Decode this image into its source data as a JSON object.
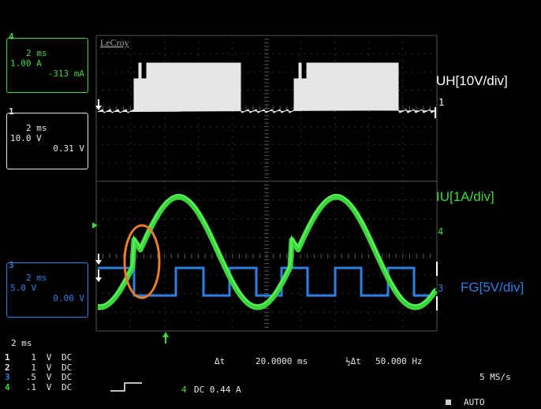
{
  "brand": "LeCroy",
  "channels": [
    {
      "num": "4",
      "timebase": "2 ms",
      "scale": "1.00 A",
      "value": "-313 mA",
      "color": "#3cd63c"
    },
    {
      "num": "1",
      "timebase": "2 ms",
      "scale": "10.0 V",
      "value": "0.31 V",
      "color": "#e6e6e6"
    },
    {
      "num": "3",
      "timebase": "2 ms",
      "scale": "5.0 V",
      "value": "0.00 V",
      "color": "#2f7fe0"
    }
  ],
  "labels": {
    "uh": "UH[10V/div]",
    "iu": "IU[1A/div]",
    "fg": "FG[5V/div]"
  },
  "bottom": {
    "timebase": "2 ms",
    "delta_t_label": "Δt",
    "delta_t": "20.0000 ms",
    "inv_delta_t_label": "½Δt",
    "freq": "50.000 Hz",
    "sample_rate": "5 MS/s",
    "trigger": "DC 0.44 A",
    "mode": "AUTO"
  },
  "channel_list": [
    {
      "num": "1",
      "value": "1",
      "unit": "V",
      "coupling": "DC"
    },
    {
      "num": "2",
      "value": "1",
      "unit": "V",
      "coupling": "DC"
    },
    {
      "num": "3",
      "value": ".5",
      "unit": "V",
      "coupling": "DC"
    },
    {
      "num": "4",
      "value": ".1",
      "unit": "V",
      "coupling": "DC"
    }
  ],
  "colors": {
    "uh": "#e6e6e6",
    "iu": "#3cd63c",
    "fg": "#2f7fe0",
    "marker": "#e87d2a",
    "grid": "#555555"
  }
}
